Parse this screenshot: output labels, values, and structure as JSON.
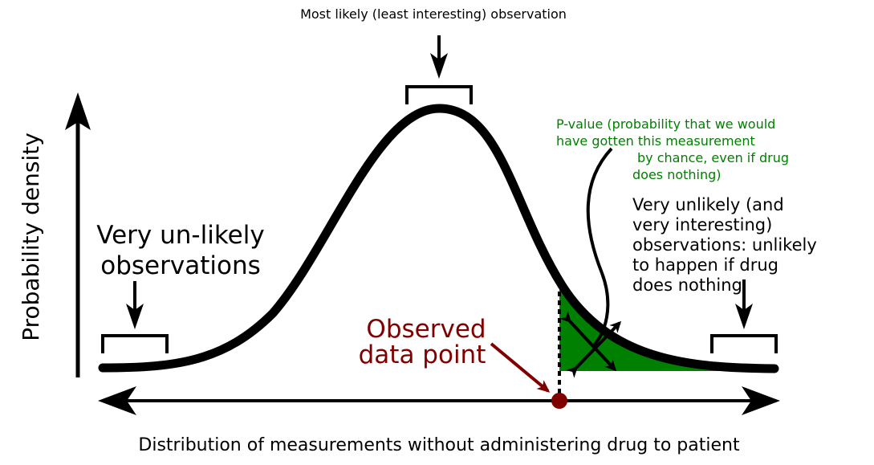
{
  "labels": {
    "top_caption": "Most likely (least interesting) observation",
    "y_axis": "Probability density",
    "x_axis": "Distribution of measurements without administering drug to patient",
    "left_note": [
      "Very un-likely",
      "observations"
    ],
    "observed": [
      "Observed",
      "data point"
    ],
    "pvalue_note": [
      "P-value (probability that we would",
      "have gotten this measurement",
      "by chance, even if drug",
      "does nothing)"
    ],
    "right_note": [
      "Very unlikely (and",
      "very interesting)",
      "observations: unlikely",
      "to happen if drug",
      "does nothing"
    ]
  },
  "colors": {
    "ink": "#000000",
    "observed": "#800000",
    "pvalue_text": "#008000",
    "pvalue_fill": "#008000"
  }
}
